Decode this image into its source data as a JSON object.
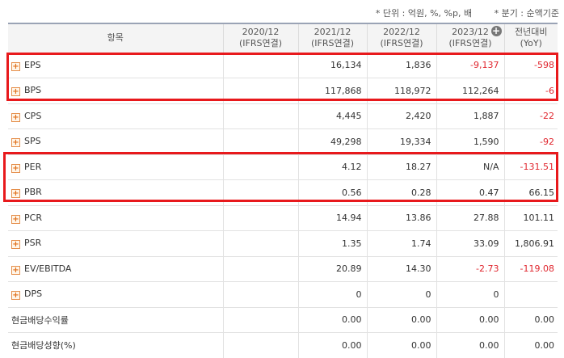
{
  "unit_notes": {
    "unit": "* 단위 : 억원, %, %p, 배",
    "basis": "* 분기 : 순액기준"
  },
  "header": {
    "item": "항목",
    "columns": [
      {
        "line1": "2020/12",
        "line2": "(IFRS연결)"
      },
      {
        "line1": "2021/12",
        "line2": "(IFRS연결)"
      },
      {
        "line1": "2022/12",
        "line2": "(IFRS연결)"
      },
      {
        "line1": "2023/12",
        "line2": "(IFRS연결)"
      }
    ],
    "yoy": {
      "line1": "전년대비",
      "line2": "(YoY)"
    },
    "add_button": "+"
  },
  "rows": [
    {
      "label": "EPS",
      "expand": true,
      "values": [
        "",
        "16,134",
        "1,836",
        "-9,137"
      ],
      "yoy": "-598"
    },
    {
      "label": "BPS",
      "expand": true,
      "values": [
        "",
        "117,868",
        "118,972",
        "112,264"
      ],
      "yoy": "-6"
    },
    {
      "label": "CPS",
      "expand": true,
      "values": [
        "",
        "4,445",
        "2,420",
        "1,887"
      ],
      "yoy": "-22"
    },
    {
      "label": "SPS",
      "expand": true,
      "values": [
        "",
        "49,298",
        "19,334",
        "1,590"
      ],
      "yoy": "-92"
    },
    {
      "label": "PER",
      "expand": true,
      "values": [
        "",
        "4.12",
        "18.27",
        "N/A"
      ],
      "yoy": "-131.51"
    },
    {
      "label": "PBR",
      "expand": true,
      "values": [
        "",
        "0.56",
        "0.28",
        "0.47"
      ],
      "yoy": "66.15"
    },
    {
      "label": "PCR",
      "expand": true,
      "values": [
        "",
        "14.94",
        "13.86",
        "27.88"
      ],
      "yoy": "101.11"
    },
    {
      "label": "PSR",
      "expand": true,
      "values": [
        "",
        "1.35",
        "1.74",
        "33.09"
      ],
      "yoy": "1,806.91"
    },
    {
      "label": "EV/EBITDA",
      "expand": true,
      "values": [
        "",
        "20.89",
        "14.30",
        "-2.73"
      ],
      "yoy": "-119.08"
    },
    {
      "label": "DPS",
      "expand": true,
      "values": [
        "",
        "0",
        "0",
        "0"
      ],
      "yoy": ""
    },
    {
      "label": "현금배당수익률",
      "expand": false,
      "values": [
        "",
        "0.00",
        "0.00",
        "0.00"
      ],
      "yoy": "0.00"
    },
    {
      "label": "현금배당성향(%)",
      "expand": false,
      "values": [
        "",
        "0.00",
        "0.00",
        "0.00"
      ],
      "yoy": "0.00"
    }
  ],
  "colors": {
    "negative": "#e0262e",
    "highlight": "#e8191c"
  },
  "expand_icon": "+"
}
